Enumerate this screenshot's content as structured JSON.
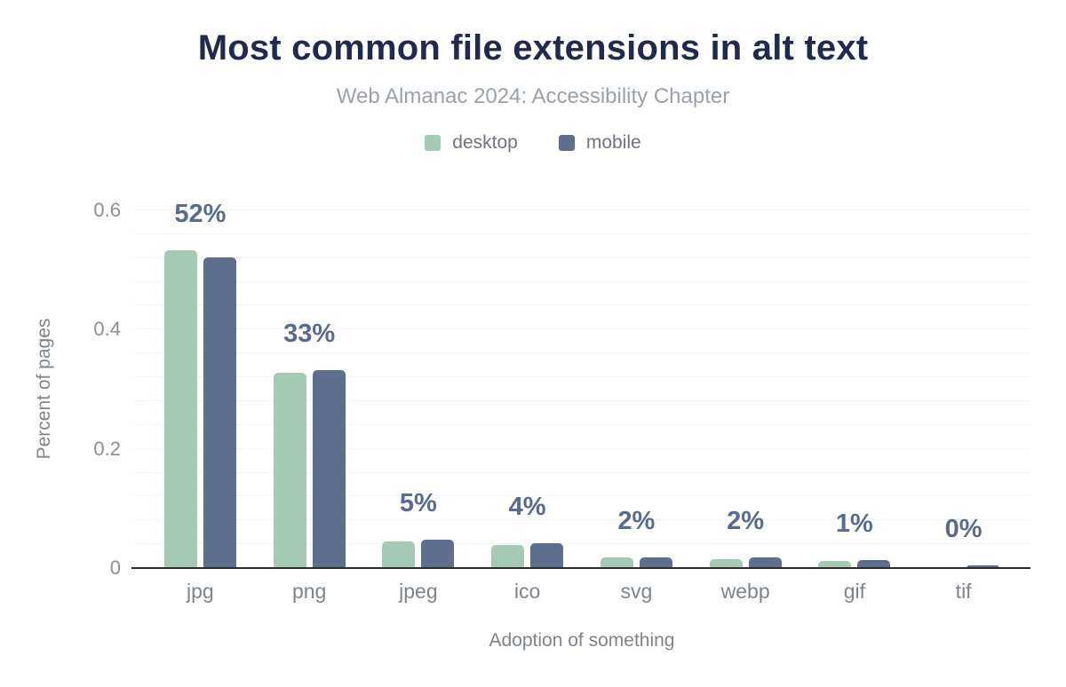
{
  "title": "Most common file extensions in alt text",
  "subtitle": "Web Almanac 2024: Accessibility Chapter",
  "colors": {
    "desktop": "#a4c9b5",
    "mobile": "#5d6f8c",
    "title": "#1f2a4d",
    "subtitle": "#9aa1aa",
    "value_label": "#566b90",
    "axis_text": "#7d848d",
    "gridline": "#f3f4f6",
    "axis_line": "#2c2c2c"
  },
  "chart_data": {
    "type": "bar",
    "title": "Most common file extensions in alt text",
    "subtitle": "Web Almanac 2024: Accessibility Chapter",
    "categories": [
      "jpg",
      "png",
      "jpeg",
      "ico",
      "svg",
      "webp",
      "gif",
      "tif"
    ],
    "series": [
      {
        "name": "desktop",
        "color": "#a4c9b5",
        "values": [
          0.533,
          0.328,
          0.045,
          0.038,
          0.018,
          0.015,
          0.012,
          0.001
        ]
      },
      {
        "name": "mobile",
        "color": "#5d6f8c",
        "values": [
          0.521,
          0.332,
          0.048,
          0.042,
          0.018,
          0.018,
          0.013,
          0.004
        ]
      }
    ],
    "bar_labels": [
      "52%",
      "33%",
      "5%",
      "4%",
      "2%",
      "2%",
      "1%",
      "0%"
    ],
    "xlabel": "Adoption of something",
    "ylabel": "Percent of pages",
    "ylim": [
      0,
      0.6
    ],
    "yticks": [
      0,
      0.2,
      0.4,
      0.6
    ],
    "grid_interval": 0.04,
    "grid": true,
    "legend_position": "top"
  }
}
